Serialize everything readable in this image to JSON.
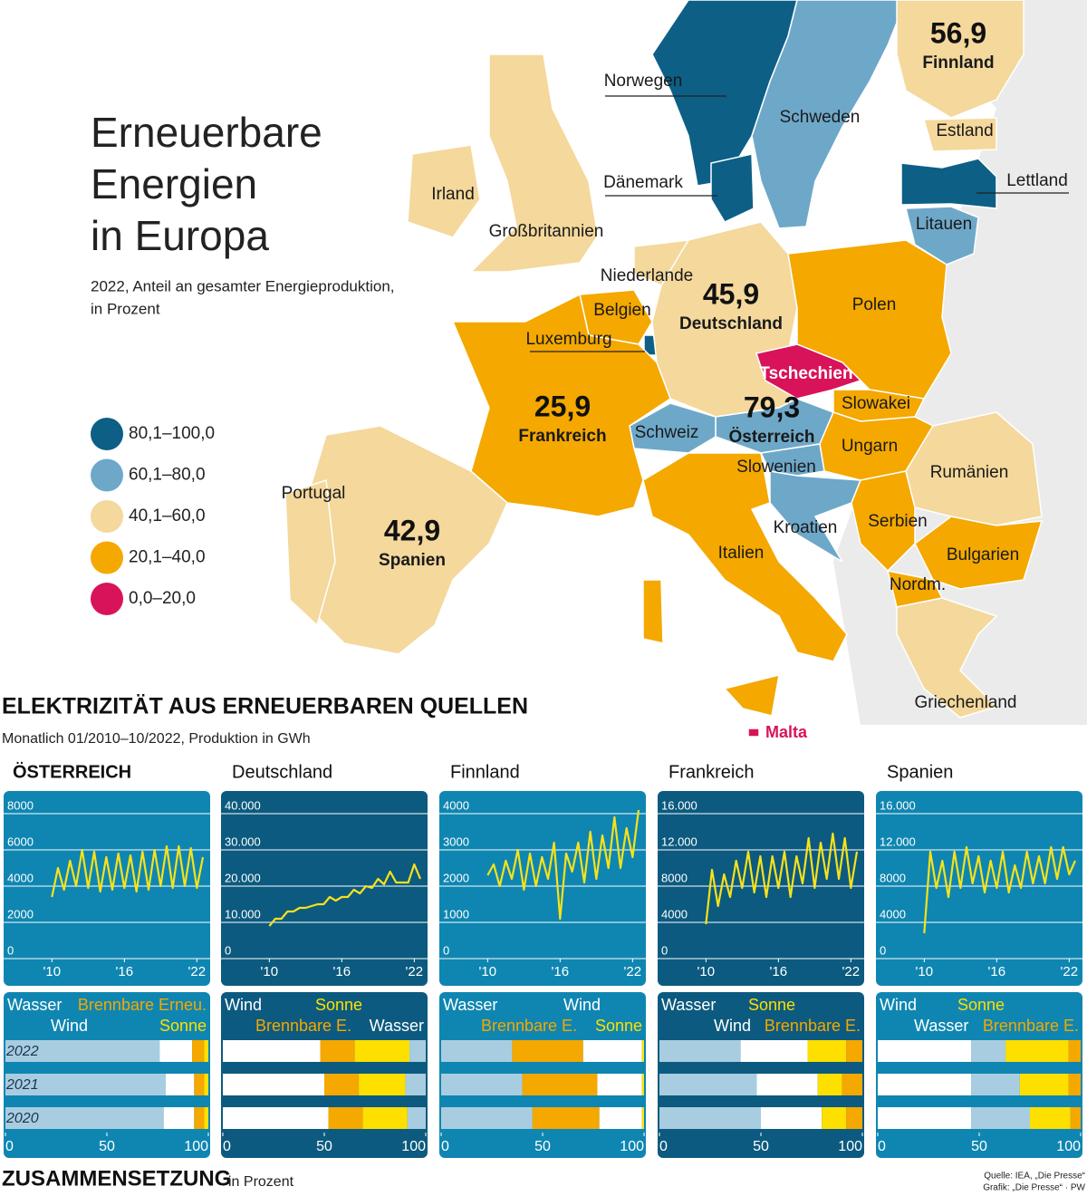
{
  "map": {
    "title_lines": [
      "Erneuerbare",
      "Energien",
      "in Europa"
    ],
    "subtitle_lines": [
      "2022, Anteil an gesamter Energieproduktion,",
      "in Prozent"
    ],
    "legend": [
      {
        "label": "80,1–100,0",
        "color": "#0d5f86"
      },
      {
        "label": "60,1–80,0",
        "color": "#6ea8c9"
      },
      {
        "label": "40,1–60,0",
        "color": "#f4d89c"
      },
      {
        "label": "20,1–40,0",
        "color": "#f4a800"
      },
      {
        "label": "0,0–20,0",
        "color": "#d8135a"
      }
    ],
    "countries": [
      {
        "name": "Norwegen",
        "color": "#0d5f86"
      },
      {
        "name": "Schweden",
        "color": "#6ea8c9"
      },
      {
        "name": "Finnland",
        "color": "#f4d89c",
        "value": "56,9"
      },
      {
        "name": "Estland",
        "color": "#f4d89c"
      },
      {
        "name": "Lettland",
        "color": "#0d5f86"
      },
      {
        "name": "Litauen",
        "color": "#6ea8c9"
      },
      {
        "name": "Dänemark",
        "color": "#0d5f86"
      },
      {
        "name": "Irland",
        "color": "#f4d89c"
      },
      {
        "name": "Großbritannien",
        "color": "#f4d89c"
      },
      {
        "name": "Niederlande",
        "color": "#f4d89c"
      },
      {
        "name": "Belgien",
        "color": "#f4a800"
      },
      {
        "name": "Luxemburg",
        "color": "#0d5f86"
      },
      {
        "name": "Deutschland",
        "color": "#f4d89c",
        "value": "45,9"
      },
      {
        "name": "Polen",
        "color": "#f4a800"
      },
      {
        "name": "Tschechien",
        "color": "#d8135a"
      },
      {
        "name": "Slowakei",
        "color": "#f4a800"
      },
      {
        "name": "Österreich",
        "color": "#6ea8c9",
        "value": "79,3"
      },
      {
        "name": "Schweiz",
        "color": "#6ea8c9"
      },
      {
        "name": "Frankreich",
        "color": "#f4a800",
        "value": "25,9"
      },
      {
        "name": "Ungarn",
        "color": "#f4a800"
      },
      {
        "name": "Slowenien",
        "color": "#6ea8c9"
      },
      {
        "name": "Kroatien",
        "color": "#6ea8c9"
      },
      {
        "name": "Serbien",
        "color": "#f4a800"
      },
      {
        "name": "Rumänien",
        "color": "#f4d89c"
      },
      {
        "name": "Bulgarien",
        "color": "#f4a800"
      },
      {
        "name": "Nordm.",
        "color": "#f4a800"
      },
      {
        "name": "Italien",
        "color": "#f4a800"
      },
      {
        "name": "Spanien",
        "color": "#f4d89c",
        "value": "42,9"
      },
      {
        "name": "Portugal",
        "color": "#f4d89c"
      },
      {
        "name": "Griechenland",
        "color": "#f4d89c"
      },
      {
        "name": "Malta",
        "color": "#d8135a"
      }
    ]
  },
  "electricity": {
    "title": "ELEKTRIZITÄT AUS ERNEUERBAREN QUELLEN",
    "subtitle": "Monatlich 01/2010–10/2022, Produktion in GWh"
  },
  "composition": {
    "title": "ZUSAMMENSETZUNG",
    "unit": "in Prozent"
  },
  "source": [
    "Quelle: IEA, „Die Presse“",
    "Grafik: „Die Presse“ · PW"
  ],
  "chart_data": [
    {
      "type": "line",
      "title": "ÖSTERREICH",
      "background": "#0f86b1",
      "xlim": [
        2006,
        2023.1
      ],
      "ylim": [
        0,
        8000
      ],
      "yticks": [
        0,
        2000,
        4000,
        6000,
        8000
      ],
      "grid": true,
      "xticks": [
        {
          "value": 2010,
          "label": "'10"
        },
        {
          "value": 2016,
          "label": "'16"
        },
        {
          "value": 2022,
          "label": "'22"
        }
      ],
      "x": [
        2010,
        2010.5,
        2011,
        2011.5,
        2012,
        2012.5,
        2013,
        2013.5,
        2014,
        2014.5,
        2015,
        2015.5,
        2016,
        2016.5,
        2017,
        2017.5,
        2018,
        2018.5,
        2019,
        2019.5,
        2020,
        2020.5,
        2021,
        2021.5,
        2022,
        2022.5
      ],
      "series": [
        {
          "color": "#f7e21a",
          "values": [
            3000,
            4600,
            3400,
            5000,
            3600,
            5600,
            3500,
            5500,
            3300,
            5200,
            3400,
            5400,
            3500,
            5300,
            3300,
            5500,
            3400,
            5600,
            3600,
            5800,
            3500,
            5800,
            3600,
            5700,
            3500,
            5200
          ]
        }
      ]
    },
    {
      "type": "line",
      "title": "Deutschland",
      "background": "#0c5a7f",
      "xlim": [
        2006,
        2023.1
      ],
      "ylim": [
        0,
        40000
      ],
      "yticks": [
        0,
        {
          "value": 10000,
          "label": "10.000"
        },
        {
          "value": 20000,
          "label": "20.000"
        },
        {
          "value": 30000,
          "label": "30.000"
        },
        {
          "value": 40000,
          "label": "40.000"
        }
      ],
      "grid": true,
      "xticks": [
        {
          "value": 2010,
          "label": "'10"
        },
        {
          "value": 2016,
          "label": "'16"
        },
        {
          "value": 2022,
          "label": "'22"
        }
      ],
      "x": [
        2010,
        2010.5,
        2011,
        2011.5,
        2012,
        2012.5,
        2013,
        2013.5,
        2014,
        2014.5,
        2015,
        2015.5,
        2016,
        2016.5,
        2017,
        2017.5,
        2018,
        2018.5,
        2019,
        2019.5,
        2020,
        2020.5,
        2021,
        2021.5,
        2022,
        2022.5
      ],
      "series": [
        {
          "color": "#f7e21a",
          "values": [
            7000,
            9000,
            9000,
            11000,
            11000,
            12000,
            12000,
            12500,
            13000,
            13000,
            15000,
            14000,
            15000,
            15000,
            17000,
            16000,
            18000,
            17500,
            20000,
            18500,
            22000,
            19000,
            19000,
            19000,
            24000,
            20000
          ]
        }
      ]
    },
    {
      "type": "line",
      "title": "Finnland",
      "background": "#0f86b1",
      "xlim": [
        2006,
        2023.1
      ],
      "ylim": [
        0,
        4000
      ],
      "yticks": [
        0,
        1000,
        2000,
        3000,
        4000
      ],
      "grid": true,
      "xticks": [
        {
          "value": 2010,
          "label": "'10"
        },
        {
          "value": 2016,
          "label": "'16"
        },
        {
          "value": 2022,
          "label": "'22"
        }
      ],
      "x": [
        2010,
        2010.5,
        2011,
        2011.5,
        2012,
        2012.5,
        2013,
        2013.5,
        2014,
        2014.5,
        2015,
        2015.5,
        2016,
        2016.5,
        2017,
        2017.5,
        2018,
        2018.5,
        2019,
        2019.5,
        2020,
        2020.5,
        2021,
        2021.5,
        2022,
        2022.5
      ],
      "series": [
        {
          "color": "#f7e21a",
          "values": [
            2100,
            2400,
            1800,
            2500,
            2000,
            2800,
            1700,
            2700,
            1800,
            2600,
            2000,
            3000,
            900,
            2700,
            2200,
            3000,
            1900,
            3300,
            2000,
            3200,
            2300,
            3700,
            2300,
            3400,
            2600,
            3900
          ]
        }
      ]
    },
    {
      "type": "line",
      "title": "Frankreich",
      "background": "#0c5a7f",
      "xlim": [
        2006,
        2023.1
      ],
      "ylim": [
        0,
        16000
      ],
      "yticks": [
        0,
        4000,
        8000,
        {
          "value": 12000,
          "label": "12.000"
        },
        {
          "value": 16000,
          "label": "16.000"
        }
      ],
      "grid": true,
      "xticks": [
        {
          "value": 2010,
          "label": "'10"
        },
        {
          "value": 2016,
          "label": "'16"
        },
        {
          "value": 2022,
          "label": "'22"
        }
      ],
      "x": [
        2010,
        2010.5,
        2011,
        2011.5,
        2012,
        2012.5,
        2013,
        2013.5,
        2014,
        2014.5,
        2015,
        2015.5,
        2016,
        2016.5,
        2017,
        2017.5,
        2018,
        2018.5,
        2019,
        2019.5,
        2020,
        2020.5,
        2021,
        2021.5,
        2022,
        2022.5
      ],
      "series": [
        {
          "color": "#f7e21a",
          "values": [
            3000,
            9000,
            5000,
            8500,
            6000,
            10000,
            7000,
            11000,
            6500,
            10500,
            6000,
            10500,
            7000,
            11000,
            6000,
            10500,
            7500,
            12500,
            7000,
            12000,
            8000,
            13000,
            8000,
            12500,
            7000,
            11000
          ]
        }
      ]
    },
    {
      "type": "line",
      "title": "Spanien",
      "background": "#0f86b1",
      "xlim": [
        2006,
        2023.1
      ],
      "ylim": [
        0,
        16000
      ],
      "yticks": [
        0,
        4000,
        8000,
        {
          "value": 12000,
          "label": "12.000"
        },
        {
          "value": 16000,
          "label": "16.000"
        }
      ],
      "grid": true,
      "xticks": [
        {
          "value": 2010,
          "label": "'10"
        },
        {
          "value": 2016,
          "label": "'16"
        },
        {
          "value": 2022,
          "label": "'22"
        }
      ],
      "x": [
        2010,
        2010.5,
        2011,
        2011.5,
        2012,
        2012.5,
        2013,
        2013.5,
        2014,
        2014.5,
        2015,
        2015.5,
        2016,
        2016.5,
        2017,
        2017.5,
        2018,
        2018.5,
        2019,
        2019.5,
        2020,
        2020.5,
        2021,
        2021.5,
        2022,
        2022.5
      ],
      "series": [
        {
          "color": "#f7e21a",
          "values": [
            2000,
            11000,
            7000,
            10000,
            6000,
            11000,
            7000,
            11500,
            7500,
            10500,
            6500,
            10000,
            7000,
            11000,
            6500,
            9500,
            7000,
            11000,
            7500,
            10500,
            7500,
            11500,
            8000,
            11500,
            8500,
            10000
          ]
        }
      ]
    },
    {
      "type": "stacked_bar",
      "background": "#0f86b1",
      "categories": [
        "2022",
        "2021",
        "2020"
      ],
      "xlim": [
        0,
        100
      ],
      "xticks": [
        0,
        50,
        100
      ],
      "series": [
        {
          "name": "Wasser",
          "color": "#a9cde0",
          "values": [
            76,
            79,
            78
          ]
        },
        {
          "name": "Wind",
          "color": "#ffffff",
          "values": [
            16,
            14,
            15
          ]
        },
        {
          "name": "Brennbare Erneu.",
          "color": "#f4a800",
          "values": [
            6,
            5,
            5
          ]
        },
        {
          "name": "Sonne",
          "color": "#fde000",
          "values": [
            2,
            2,
            2
          ]
        }
      ]
    },
    {
      "type": "stacked_bar",
      "background": "#0c5a7f",
      "xlim": [
        0,
        100
      ],
      "xticks": [
        0,
        50,
        100
      ],
      "series": [
        {
          "name": "Wind",
          "color": "#ffffff",
          "values": [
            48,
            50,
            52
          ]
        },
        {
          "name": "Brennbare E.",
          "color": "#f4a800",
          "values": [
            17,
            17,
            17
          ]
        },
        {
          "name": "Sonne",
          "color": "#fde000",
          "values": [
            27,
            23,
            22
          ]
        },
        {
          "name": "Wasser",
          "color": "#a9cde0",
          "values": [
            8,
            10,
            9
          ]
        }
      ]
    },
    {
      "type": "stacked_bar",
      "background": "#0f86b1",
      "xlim": [
        0,
        100
      ],
      "xticks": [
        0,
        50,
        100
      ],
      "series": [
        {
          "name": "Wasser",
          "color": "#a9cde0",
          "values": [
            35,
            40,
            45
          ]
        },
        {
          "name": "Brennbare E.",
          "color": "#f4a800",
          "values": [
            35,
            37,
            33
          ]
        },
        {
          "name": "Wind",
          "color": "#ffffff",
          "values": [
            29,
            22,
            21
          ]
        },
        {
          "name": "Sonne",
          "color": "#fde000",
          "values": [
            1,
            1,
            1
          ]
        }
      ]
    },
    {
      "type": "stacked_bar",
      "background": "#0c5a7f",
      "xlim": [
        0,
        100
      ],
      "xticks": [
        0,
        50,
        100
      ],
      "series": [
        {
          "name": "Wasser",
          "color": "#a9cde0",
          "values": [
            40,
            48,
            50
          ]
        },
        {
          "name": "Wind",
          "color": "#ffffff",
          "values": [
            33,
            30,
            30
          ]
        },
        {
          "name": "Sonne",
          "color": "#fde000",
          "values": [
            19,
            12,
            12
          ]
        },
        {
          "name": "Brennbare E.",
          "color": "#f4a800",
          "values": [
            8,
            10,
            8
          ]
        }
      ]
    },
    {
      "type": "stacked_bar",
      "background": "#0f86b1",
      "xlim": [
        0,
        100
      ],
      "xticks": [
        0,
        50,
        100
      ],
      "series": [
        {
          "name": "Wind",
          "color": "#ffffff",
          "values": [
            46,
            46,
            46
          ]
        },
        {
          "name": "Wasser",
          "color": "#a9cde0",
          "values": [
            17,
            24,
            29
          ]
        },
        {
          "name": "Sonne",
          "color": "#fde000",
          "values": [
            31,
            24,
            20
          ]
        },
        {
          "name": "Brennbare E.",
          "color": "#f4a800",
          "values": [
            6,
            6,
            5
          ]
        }
      ]
    }
  ]
}
